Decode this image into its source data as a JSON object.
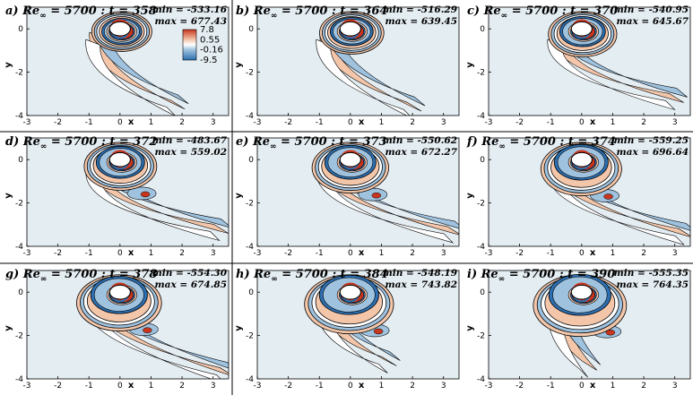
{
  "colors": {
    "background": "#e4edf2",
    "positive_strong": "#c8361f",
    "positive_light": "#f3c6aa",
    "negative_light": "#9fc2df",
    "negative_strong": "#2d6fb0",
    "contour_line": "#000000",
    "cylinder": "#ffffff"
  },
  "legend": {
    "labels": [
      "7.8",
      "0.55",
      "-0.16",
      "-9.5"
    ]
  },
  "chart_data": [
    {
      "type": "heatmap",
      "label": "a)",
      "re": "Re",
      "re_sub": "∞",
      "re_value": "= 5700 : t = 358",
      "t": 358,
      "min_text": "min = -533.16",
      "max_text": "max = 677.43",
      "min": -533.16,
      "max": 677.43,
      "xlabel": "x",
      "ylabel": "y",
      "xlim": [
        -3,
        3.5
      ],
      "ylim": [
        -4,
        1
      ],
      "xticks": [
        "-3",
        "-2",
        "-1",
        "0",
        "1",
        "2",
        "3"
      ],
      "yticks": [
        "0",
        "-2",
        "-4"
      ],
      "tail_end": [
        1.8,
        -3.7
      ]
    },
    {
      "type": "heatmap",
      "label": "b)",
      "re": "Re",
      "re_sub": "∞",
      "re_value": "= 5700 : t = 364",
      "t": 364,
      "min_text": "min = -516.29",
      "max_text": "max = 639.45",
      "min": -516.29,
      "max": 639.45,
      "xlabel": "x",
      "ylabel": "y",
      "xlim": [
        -3,
        3.5
      ],
      "ylim": [
        -4,
        1
      ],
      "xticks": [
        "-3",
        "-2",
        "-1",
        "0",
        "1",
        "2",
        "3"
      ],
      "yticks": [
        "0",
        "-2",
        "-4"
      ],
      "tail_end": [
        2.0,
        -3.8
      ]
    },
    {
      "type": "heatmap",
      "label": "c)",
      "re": "Re",
      "re_sub": "∞",
      "re_value": "= 5700 : t = 370",
      "t": 370,
      "min_text": "min = -540.95",
      "max_text": "max = 645.67",
      "min": -540.95,
      "max": 645.67,
      "xlabel": "x",
      "ylabel": "y",
      "xlim": [
        -3,
        3.5
      ],
      "ylim": [
        -4,
        1
      ],
      "xticks": [
        "-3",
        "-2",
        "-1",
        "0",
        "1",
        "2",
        "3"
      ],
      "yticks": [
        "0",
        "-2",
        "-4"
      ],
      "tail_end": [
        3.0,
        -3.4
      ]
    },
    {
      "type": "heatmap",
      "label": "d)",
      "re": "Re",
      "re_sub": "∞",
      "re_value": "= 5700 : t = 372",
      "t": 372,
      "min_text": "min = -483.67",
      "max_text": "max = 559.02",
      "min": -483.67,
      "max": 559.02,
      "xlabel": "x",
      "ylabel": "y",
      "xlim": [
        -3,
        3.5
      ],
      "ylim": [
        -4,
        1
      ],
      "xticks": [
        "-3",
        "-2",
        "-1",
        "0",
        "1",
        "2",
        "3"
      ],
      "yticks": [
        "0",
        "-2",
        "-4"
      ],
      "tail_end": [
        3.2,
        -3.4
      ]
    },
    {
      "type": "heatmap",
      "label": "e)",
      "re": "Re",
      "re_sub": "∞",
      "re_value": "= 5700 : t = 373",
      "t": 373,
      "min_text": "min = -550.62",
      "max_text": "max = 672.27",
      "min": -550.62,
      "max": 672.27,
      "xlabel": "x",
      "ylabel": "y",
      "xlim": [
        -3,
        3.5
      ],
      "ylim": [
        -4,
        1
      ],
      "xticks": [
        "-3",
        "-2",
        "-1",
        "0",
        "1",
        "2",
        "3"
      ],
      "yticks": [
        "0",
        "-2",
        "-4"
      ],
      "tail_end": [
        3.3,
        -3.5
      ]
    },
    {
      "type": "heatmap",
      "label": "f)",
      "re": "Re",
      "re_sub": "∞",
      "re_value": "= 5700 : t = 374",
      "t": 374,
      "min_text": "min = -559.25",
      "max_text": "max = 696.64",
      "min": -559.25,
      "max": 696.64,
      "xlabel": "x",
      "ylabel": "y",
      "xlim": [
        -3,
        3.5
      ],
      "ylim": [
        -4,
        1
      ],
      "xticks": [
        "-3",
        "-2",
        "-1",
        "0",
        "1",
        "2",
        "3"
      ],
      "yticks": [
        "0",
        "-2",
        "-4"
      ],
      "tail_end": [
        3.3,
        -3.6
      ]
    },
    {
      "type": "heatmap",
      "label": "g)",
      "re": "Re",
      "re_sub": "∞",
      "re_value": "= 5700 : t = 378",
      "t": 378,
      "min_text": "min = -554.30",
      "max_text": "max = 674.85",
      "min": -554.3,
      "max": 674.85,
      "xlabel": "x",
      "ylabel": "y",
      "xlim": [
        -3,
        3.5
      ],
      "ylim": [
        -4,
        1
      ],
      "xticks": [
        "-3",
        "-2",
        "-1",
        "0",
        "1",
        "2",
        "3"
      ],
      "yticks": [
        "0",
        "-2",
        "-4"
      ],
      "tail_end": [
        3.4,
        -3.9
      ]
    },
    {
      "type": "heatmap",
      "label": "h)",
      "re": "Re",
      "re_sub": "∞",
      "re_value": "= 5700 : t = 384",
      "t": 384,
      "min_text": "min = -548.19",
      "max_text": "max = 743.82",
      "min": -548.19,
      "max": 743.82,
      "xlabel": "x",
      "ylabel": "y",
      "xlim": [
        -3,
        3.5
      ],
      "ylim": [
        -4,
        1
      ],
      "xticks": [
        "-3",
        "-2",
        "-1",
        "0",
        "1",
        "2",
        "3"
      ],
      "yticks": [
        "0",
        "-2",
        "-4"
      ],
      "tail_end": [
        1.2,
        -3.4
      ]
    },
    {
      "type": "heatmap",
      "label": "i)",
      "re": "Re",
      "re_sub": "∞",
      "re_value": "= 5700 : t = 390",
      "t": 390,
      "min_text": "min = -555.35",
      "max_text": "max = 764.35",
      "min": -555.35,
      "max": 764.35,
      "xlabel": "x",
      "ylabel": "y",
      "xlim": [
        -3,
        3.5
      ],
      "ylim": [
        -4,
        1
      ],
      "xticks": [
        "-3",
        "-2",
        "-1",
        "0",
        "1",
        "2",
        "3"
      ],
      "yticks": [
        "0",
        "-2",
        "-4"
      ],
      "tail_end": [
        0.2,
        -3.6
      ]
    }
  ]
}
